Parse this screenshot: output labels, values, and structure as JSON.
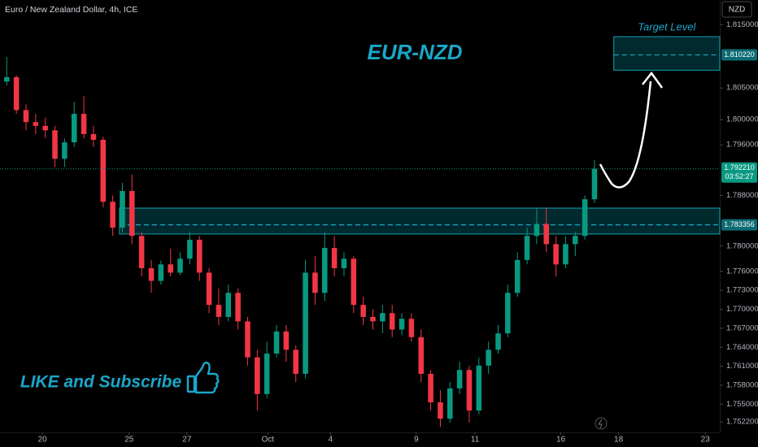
{
  "chart_data": {
    "type": "candlestick",
    "title": "Euro / New Zealand Dollar, 4h, ICE",
    "heading": "EUR-NZD",
    "currency": "NZD",
    "annotation": "LIKE and Subscribe",
    "up_color": "#089981",
    "down_color": "#f23645",
    "open": [
      1.806,
      1.8067,
      1.8015,
      1.7996,
      1.799,
      1.7983,
      1.7938,
      1.7964,
      1.8009,
      1.7977,
      1.7968,
      1.787,
      1.7829,
      1.7887,
      1.7816,
      1.7765,
      1.7745,
      1.7771,
      1.7758,
      1.778,
      1.781,
      1.7758,
      1.7707,
      1.7688,
      1.7726,
      1.7681,
      1.7624,
      1.7566,
      1.763,
      1.7665,
      1.7636,
      1.7598,
      1.7758,
      1.7726,
      1.7797,
      1.7765,
      1.778,
      1.7707,
      1.7688,
      1.7681,
      1.7694,
      1.7668,
      1.7685,
      1.7656,
      1.7598,
      1.7553,
      1.7527,
      1.7575,
      1.7604,
      1.754,
      1.7611,
      1.7636,
      1.7662,
      1.7726,
      1.7778,
      1.7816,
      1.7835,
      1.7803,
      1.7771,
      1.7803,
      1.7816,
      1.7874
    ],
    "high": [
      1.8099,
      1.807,
      1.8024,
      1.8009,
      1.8003,
      1.799,
      1.797,
      1.8028,
      1.8037,
      1.799,
      1.7973,
      1.788,
      1.79,
      1.7913,
      1.7822,
      1.7778,
      1.7777,
      1.7796,
      1.779,
      1.7822,
      1.7816,
      1.7765,
      1.7733,
      1.7739,
      1.7733,
      1.7688,
      1.7636,
      1.7649,
      1.7675,
      1.7675,
      1.7643,
      1.7778,
      1.7784,
      1.7822,
      1.7816,
      1.779,
      1.7784,
      1.772,
      1.77,
      1.7707,
      1.7707,
      1.7694,
      1.7694,
      1.7668,
      1.7604,
      1.7572,
      1.7585,
      1.7617,
      1.7611,
      1.7624,
      1.7649,
      1.7675,
      1.7739,
      1.779,
      1.7829,
      1.7861,
      1.7861,
      1.7816,
      1.7816,
      1.7822,
      1.788,
      1.7936
    ],
    "low": [
      1.8054,
      1.8009,
      1.7983,
      1.7977,
      1.7971,
      1.7925,
      1.7925,
      1.7957,
      1.797,
      1.7957,
      1.7861,
      1.7816,
      1.7822,
      1.7803,
      1.7752,
      1.7726,
      1.7739,
      1.7752,
      1.7754,
      1.7771,
      1.7745,
      1.7694,
      1.7675,
      1.7681,
      1.7668,
      1.7611,
      1.754,
      1.7559,
      1.7624,
      1.7617,
      1.7585,
      1.7591,
      1.7707,
      1.7713,
      1.7752,
      1.7752,
      1.7694,
      1.7675,
      1.7668,
      1.7662,
      1.7656,
      1.7659,
      1.7649,
      1.7585,
      1.754,
      1.7514,
      1.7521,
      1.7566,
      1.7521,
      1.7534,
      1.7598,
      1.763,
      1.7656,
      1.772,
      1.7771,
      1.7803,
      1.779,
      1.7752,
      1.7765,
      1.7784,
      1.781,
      1.7868
    ],
    "close": [
      1.8067,
      1.8015,
      1.7996,
      1.799,
      1.7983,
      1.7938,
      1.7964,
      1.8009,
      1.7977,
      1.7968,
      1.787,
      1.7829,
      1.7887,
      1.7816,
      1.7765,
      1.7745,
      1.7771,
      1.7758,
      1.778,
      1.781,
      1.7758,
      1.7707,
      1.7688,
      1.7726,
      1.7681,
      1.7624,
      1.7566,
      1.763,
      1.7665,
      1.7636,
      1.7598,
      1.7758,
      1.7726,
      1.7797,
      1.7765,
      1.778,
      1.7707,
      1.7688,
      1.7681,
      1.7694,
      1.7668,
      1.7685,
      1.7656,
      1.7598,
      1.7553,
      1.7527,
      1.7575,
      1.7604,
      1.754,
      1.7611,
      1.7636,
      1.7662,
      1.7726,
      1.7778,
      1.7816,
      1.7835,
      1.7803,
      1.7771,
      1.7803,
      1.7816,
      1.7874,
      1.79221
    ],
    "xlim": [
      -0.7,
      74
    ],
    "ylim": [
      1.7508,
      1.8189
    ],
    "xticks": [
      {
        "value": 3.7,
        "label": "20"
      },
      {
        "value": 12.7,
        "label": "25"
      },
      {
        "value": 18.7,
        "label": "27"
      },
      {
        "value": 27.1,
        "label": "Oct"
      },
      {
        "value": 33.6,
        "label": "4"
      },
      {
        "value": 42.5,
        "label": "9"
      },
      {
        "value": 48.6,
        "label": "11"
      },
      {
        "value": 57.5,
        "label": "16"
      },
      {
        "value": 63.5,
        "label": "18"
      },
      {
        "value": 72.5,
        "label": "23"
      }
    ],
    "yticks": [
      {
        "value": 1.815,
        "label": "1.815000"
      },
      {
        "value": 1.805,
        "label": "1.805000"
      },
      {
        "value": 1.8,
        "label": "1.800000"
      },
      {
        "value": 1.796,
        "label": "1.796000"
      },
      {
        "value": 1.788,
        "label": "1.788000"
      },
      {
        "value": 1.78,
        "label": "1.780000"
      },
      {
        "value": 1.776,
        "label": "1.776000"
      },
      {
        "value": 1.773,
        "label": "1.773000"
      },
      {
        "value": 1.77,
        "label": "1.770000"
      },
      {
        "value": 1.767,
        "label": "1.767000"
      },
      {
        "value": 1.764,
        "label": "1.764000"
      },
      {
        "value": 1.761,
        "label": "1.761000"
      },
      {
        "value": 1.758,
        "label": "1.758000"
      },
      {
        "value": 1.755,
        "label": "1.755000"
      },
      {
        "value": 1.7522,
        "label": "1.752200"
      }
    ],
    "last_price": {
      "value": 1.79221,
      "label": "1.792210"
    },
    "countdown": "03:52:27",
    "zones": [
      {
        "low": 1.7819,
        "high": 1.786,
        "x_start": 11.7,
        "level": 1.783356
      },
      {
        "name": "Target Level",
        "low": 1.8078,
        "high": 1.8131,
        "x_start": 63.0,
        "level": {
          "value": 1.81022,
          "label": "1.810220"
        }
      }
    ]
  }
}
